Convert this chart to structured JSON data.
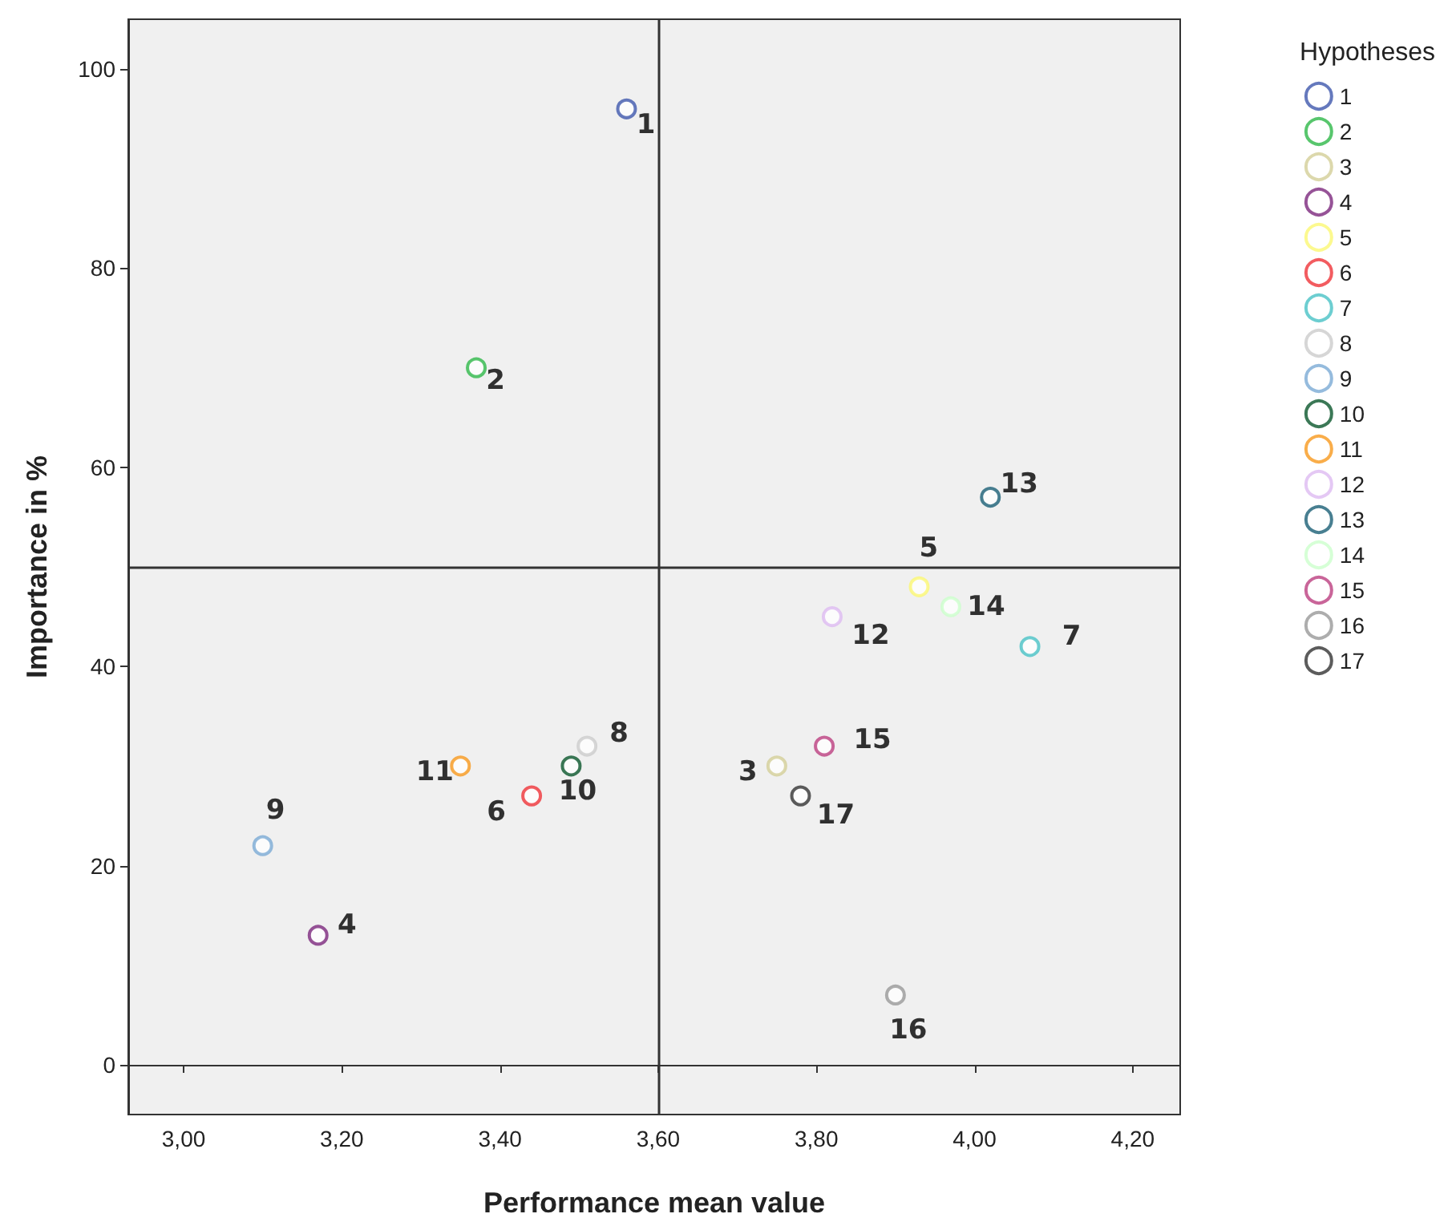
{
  "chart_data": {
    "type": "scatter",
    "xlabel": "Performance mean value",
    "ylabel": "Importance in %",
    "legend_title": "Hypotheses",
    "legend": "top right",
    "grid": false,
    "marker": "circle",
    "xlim": [
      2.93,
      4.26
    ],
    "ylim": [
      -5,
      105
    ],
    "xticks": [
      {
        "value": 3.0,
        "label": "3,00"
      },
      {
        "value": 3.2,
        "label": "3,20"
      },
      {
        "value": 3.4,
        "label": "3,40"
      },
      {
        "value": 3.6,
        "label": "3,60"
      },
      {
        "value": 3.8,
        "label": "3,80"
      },
      {
        "value": 4.0,
        "label": "4,00"
      },
      {
        "value": 4.2,
        "label": "4,20"
      }
    ],
    "yticks": [
      0,
      20,
      40,
      60,
      80,
      100
    ],
    "ref_lines": [
      {
        "axis": "x",
        "value": 3.6,
        "color": "#333333"
      },
      {
        "axis": "y",
        "value": 50,
        "color": "#333333"
      }
    ],
    "series": [
      {
        "name": "1",
        "color": "#3e58ac",
        "x": [
          3.56
        ],
        "values": [
          96
        ]
      },
      {
        "name": "2",
        "color": "#2eb848",
        "x": [
          3.37
        ],
        "values": [
          70
        ]
      },
      {
        "name": "3",
        "color": "#d3ce97",
        "x": [
          3.75
        ],
        "values": [
          30
        ]
      },
      {
        "name": "4",
        "color": "#7c287d",
        "x": [
          3.17
        ],
        "values": [
          13
        ]
      },
      {
        "name": "5",
        "color": "#fbf873",
        "x": [
          3.93
        ],
        "values": [
          48
        ]
      },
      {
        "name": "6",
        "color": "#ef3338",
        "x": [
          3.44
        ],
        "values": [
          27
        ]
      },
      {
        "name": "7",
        "color": "#48c2c5",
        "x": [
          4.07
        ],
        "values": [
          42
        ]
      },
      {
        "name": "8",
        "color": "#cccccc",
        "x": [
          3.51
        ],
        "values": [
          32
        ]
      },
      {
        "name": "9",
        "color": "#7aaad5",
        "x": [
          3.1
        ],
        "values": [
          22
        ]
      },
      {
        "name": "10",
        "color": "#0a562c",
        "x": [
          3.49
        ],
        "values": [
          30
        ]
      },
      {
        "name": "11",
        "color": "#f8981d",
        "x": [
          3.35
        ],
        "values": [
          30
        ]
      },
      {
        "name": "12",
        "color": "#ddbaf1",
        "x": [
          3.82
        ],
        "values": [
          45
        ]
      },
      {
        "name": "13",
        "color": "#1a5f76",
        "x": [
          4.02
        ],
        "values": [
          57
        ]
      },
      {
        "name": "14",
        "color": "#ccffcc",
        "x": [
          3.97
        ],
        "values": [
          46
        ]
      },
      {
        "name": "15",
        "color": "#bb3f7f",
        "x": [
          3.81
        ],
        "values": [
          32
        ]
      },
      {
        "name": "16",
        "color": "#999999",
        "x": [
          3.9
        ],
        "values": [
          7
        ]
      },
      {
        "name": "17",
        "color": "#333333",
        "x": [
          3.78
        ],
        "values": [
          27
        ]
      }
    ]
  }
}
